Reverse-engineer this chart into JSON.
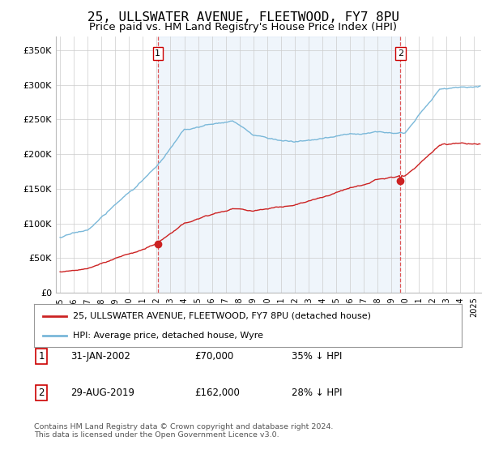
{
  "title": "25, ULLSWATER AVENUE, FLEETWOOD, FY7 8PU",
  "subtitle": "Price paid vs. HM Land Registry's House Price Index (HPI)",
  "title_fontsize": 11.5,
  "subtitle_fontsize": 9.5,
  "ylabel_ticks": [
    "£0",
    "£50K",
    "£100K",
    "£150K",
    "£200K",
    "£250K",
    "£300K",
    "£350K"
  ],
  "ytick_values": [
    0,
    50000,
    100000,
    150000,
    200000,
    250000,
    300000,
    350000
  ],
  "ylim": [
    0,
    370000
  ],
  "xlim_start": 1994.7,
  "xlim_end": 2025.5,
  "hpi_color": "#7ab8d9",
  "price_color": "#cc2222",
  "vline_color": "#dd4444",
  "shade_color": "#ddeeff",
  "background_color": "#ffffff",
  "grid_color": "#cccccc",
  "sale1_x": 2002.08,
  "sale1_y": 70000,
  "sale1_label": "1",
  "sale2_x": 2019.66,
  "sale2_y": 162000,
  "sale2_label": "2",
  "legend_line1": "25, ULLSWATER AVENUE, FLEETWOOD, FY7 8PU (detached house)",
  "legend_line2": "HPI: Average price, detached house, Wyre",
  "table_row1": [
    "1",
    "31-JAN-2002",
    "£70,000",
    "35% ↓ HPI"
  ],
  "table_row2": [
    "2",
    "29-AUG-2019",
    "£162,000",
    "28% ↓ HPI"
  ],
  "footnote": "Contains HM Land Registry data © Crown copyright and database right 2024.\nThis data is licensed under the Open Government Licence v3.0.",
  "xtick_years": [
    1995,
    1996,
    1997,
    1998,
    1999,
    2000,
    2001,
    2002,
    2003,
    2004,
    2005,
    2006,
    2007,
    2008,
    2009,
    2010,
    2011,
    2012,
    2013,
    2014,
    2015,
    2016,
    2017,
    2018,
    2019,
    2020,
    2021,
    2022,
    2023,
    2024,
    2025
  ]
}
